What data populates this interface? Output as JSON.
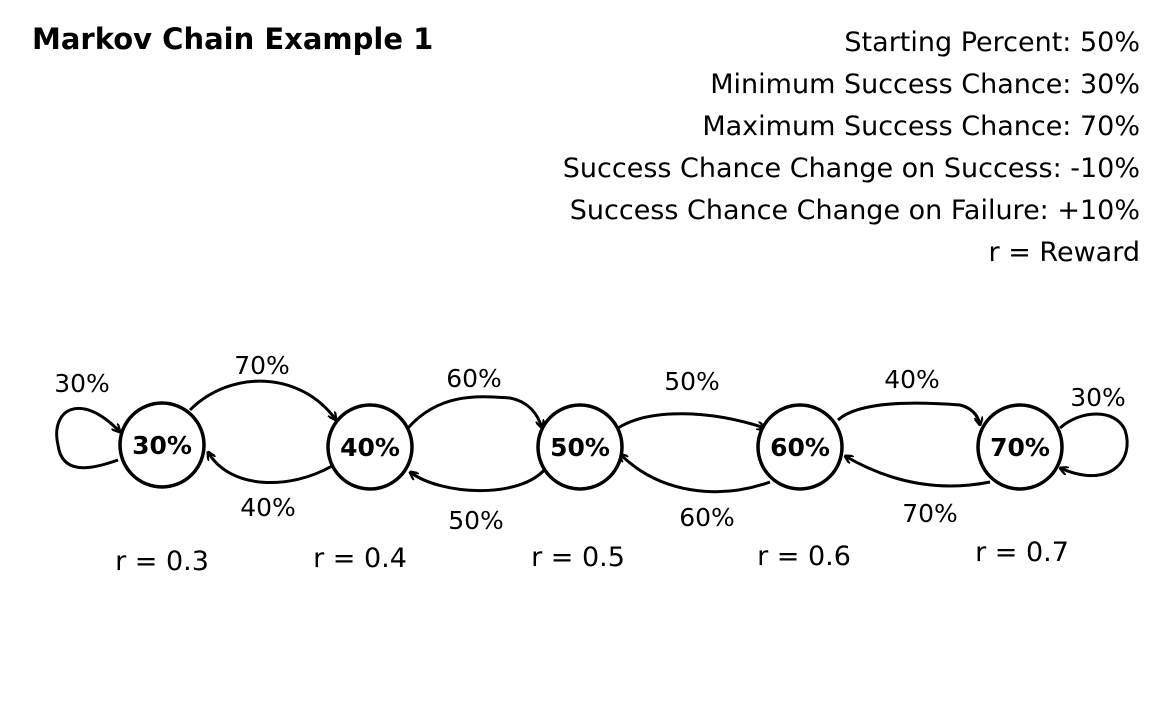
{
  "title": "Markov Chain Example 1",
  "info_lines": [
    "Starting Percent: 50%",
    "Minimum Success Chance: 30%",
    "Maximum Success Chance: 70%",
    "Success Chance Change on Success: -10%",
    "Success Chance Change on Failure: +10%",
    "r = Reward"
  ],
  "states": [
    {
      "label": "30%",
      "reward": "r = 0.3"
    },
    {
      "label": "40%",
      "reward": "r = 0.4"
    },
    {
      "label": "50%",
      "reward": "r = 0.5"
    },
    {
      "label": "60%",
      "reward": "r = 0.6"
    },
    {
      "label": "70%",
      "reward": "r = 0.7"
    }
  ],
  "transitions": {
    "self_loop_first": "30%",
    "self_loop_last": "30%",
    "forward": [
      "70%",
      "60%",
      "50%",
      "40%"
    ],
    "backward": [
      "40%",
      "50%",
      "60%",
      "70%"
    ]
  }
}
